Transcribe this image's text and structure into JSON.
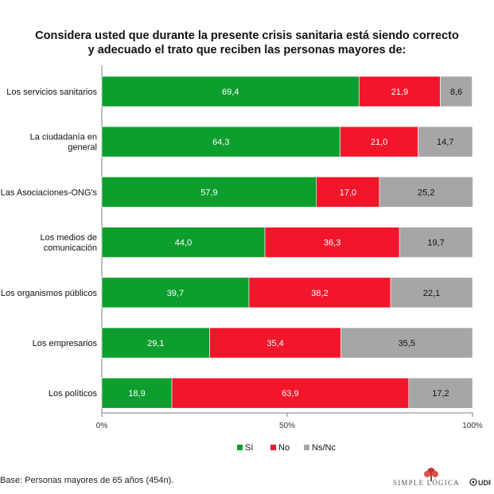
{
  "chart_data": {
    "type": "bar",
    "orientation": "horizontal",
    "stacked": true,
    "title_lines": [
      "Considera usted que durante la presente crisis sanitaria está siendo correcto",
      "y adecuado el trato que reciben las personas mayores de:"
    ],
    "categories": [
      [
        "Los servicios sanitarios"
      ],
      [
        "La ciudadanía en",
        "general"
      ],
      [
        "Las Asociaciones-ONG's"
      ],
      [
        "Los medios de",
        "comunicación"
      ],
      [
        "Los organismos públicos"
      ],
      [
        "Los empresarios"
      ],
      [
        "Los políticos"
      ]
    ],
    "series": [
      {
        "name": "Sí",
        "color": "#0d9e2e",
        "values": [
          69.4,
          64.3,
          57.9,
          44.0,
          39.7,
          29.1,
          18.9
        ],
        "labels": [
          "69,4",
          "64,3",
          "57,9",
          "44,0",
          "39,7",
          "29,1",
          "18,9"
        ],
        "label_color": "#ffffff"
      },
      {
        "name": "No",
        "color": "#f2162a",
        "values": [
          21.9,
          21.0,
          17.0,
          36.3,
          38.2,
          35.4,
          63.9
        ],
        "labels": [
          "21,9",
          "21,0",
          "17,0",
          "36,3",
          "38,2",
          "35,4",
          "63,9"
        ],
        "label_color": "#ffffff"
      },
      {
        "name": "Ns/Nc",
        "color": "#a6a6a6",
        "values": [
          8.6,
          14.7,
          25.2,
          19.7,
          22.1,
          35.5,
          17.2
        ],
        "labels": [
          "8,6",
          "14,7",
          "25,2",
          "19,7",
          "22,1",
          "35,5",
          "17,2"
        ],
        "label_color": "#111111"
      }
    ],
    "xlim": [
      0,
      100
    ],
    "xticks": [
      "0%",
      "50%",
      "100%"
    ],
    "legend_position": "bottom"
  },
  "footer": {
    "note": "Base: Personas mayores de 65 años (454n).",
    "brand": "SIMPLE LÓGICA",
    "brand_partner": "UDP"
  }
}
